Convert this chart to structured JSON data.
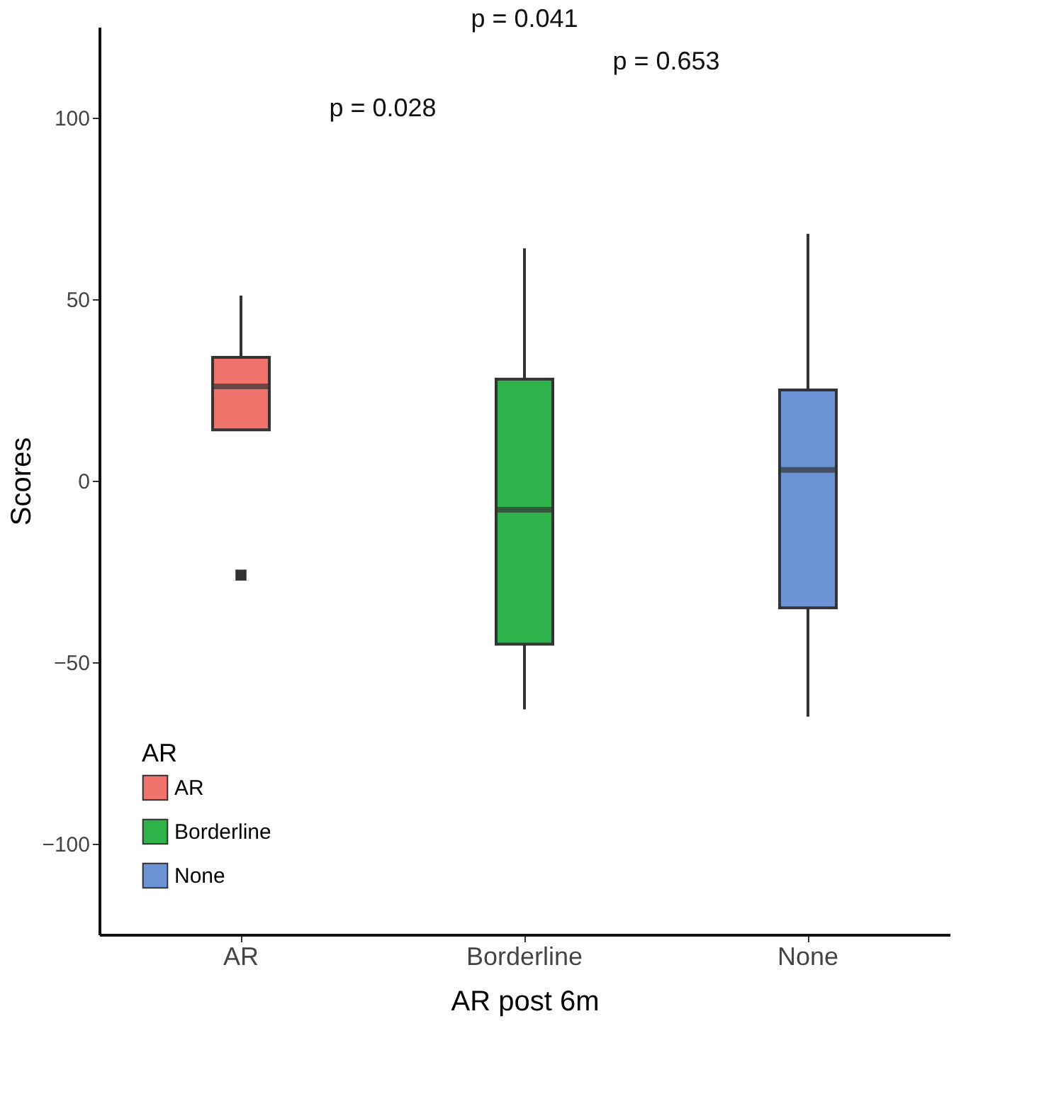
{
  "chart_data": {
    "type": "box",
    "xlabel": "AR post 6m",
    "ylabel": "Scores",
    "legend_title": "AR",
    "categories": [
      "AR",
      "Borderline",
      "None"
    ],
    "series": [
      {
        "name": "AR",
        "color": "#f0736b",
        "boxes": [
          {
            "low": 14,
            "q1": 14,
            "median": 26,
            "q3": 34,
            "high": 51,
            "outliers": [
              -26
            ]
          },
          null,
          null
        ]
      },
      {
        "name": "Borderline",
        "color": "#2db34a",
        "boxes": [
          null,
          {
            "low": -63,
            "q1": -45,
            "median": -8,
            "q3": 28,
            "high": 64
          },
          null
        ]
      },
      {
        "name": "None",
        "color": "#6b93d6",
        "boxes": [
          null,
          null,
          {
            "low": -65,
            "q1": -35,
            "median": 3,
            "q3": 25,
            "high": 68
          }
        ]
      }
    ],
    "ylim": [
      -125,
      125
    ],
    "yticks": [
      -100,
      -50,
      0,
      50,
      100
    ],
    "annotations": [
      "p = 0.028",
      "p = 0.653",
      "p = 0.041"
    ],
    "legend": "bottom left",
    "grid": false
  }
}
